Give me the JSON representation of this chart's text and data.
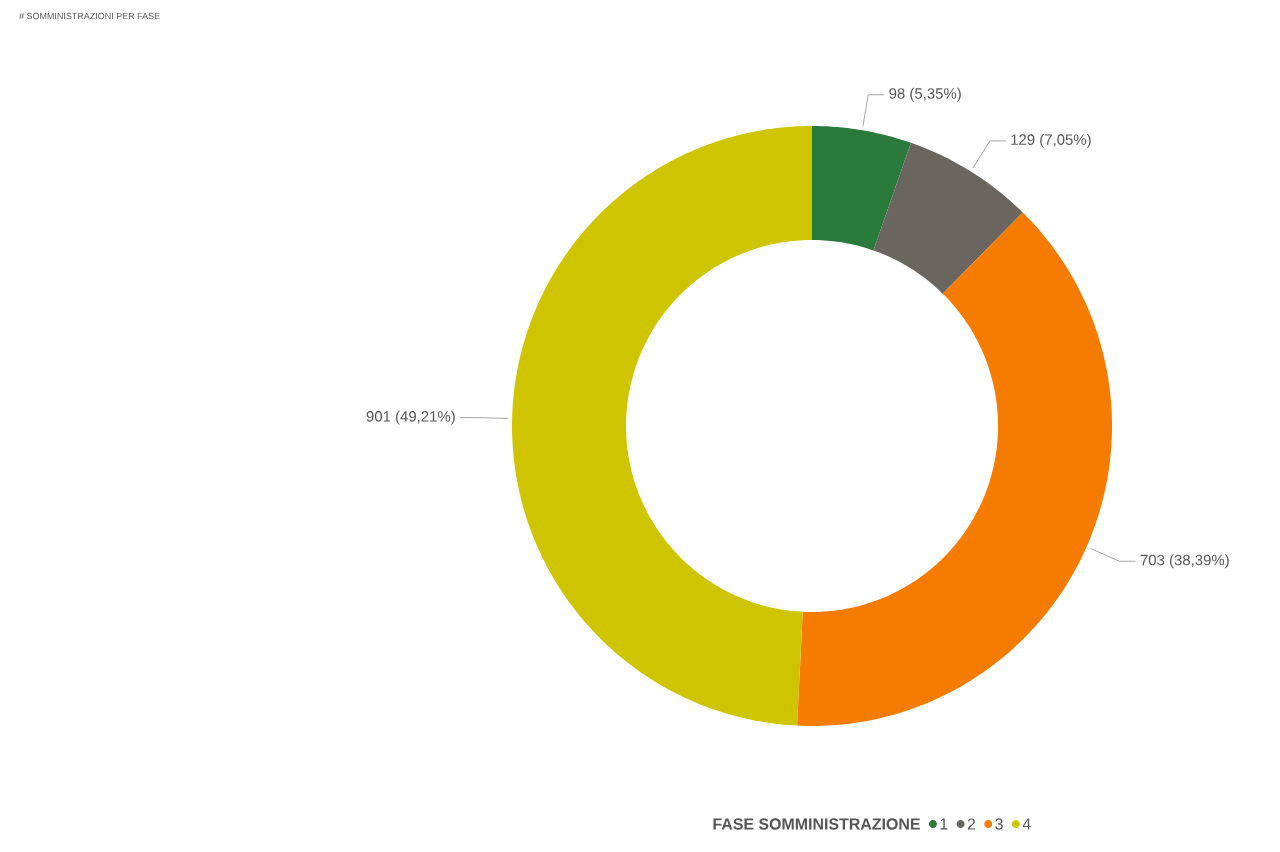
{
  "chart_data": {
    "type": "donut",
    "title": "# SOMMINISTRAZIONI PER FASE",
    "legend_title": "FASE SOMMINISTRAZIONE",
    "legend": "bottom",
    "categories": [
      "1",
      "2",
      "3",
      "4"
    ],
    "values": [
      98,
      129,
      703,
      901
    ],
    "value_labels": [
      "98 (5,35%)",
      "129 (7,05%)",
      "703 (38,39%)",
      "901 (49,21%)"
    ],
    "colors": [
      "#2a7a3b",
      "#6b6560",
      "#f57c00",
      "#cfc400"
    ]
  }
}
